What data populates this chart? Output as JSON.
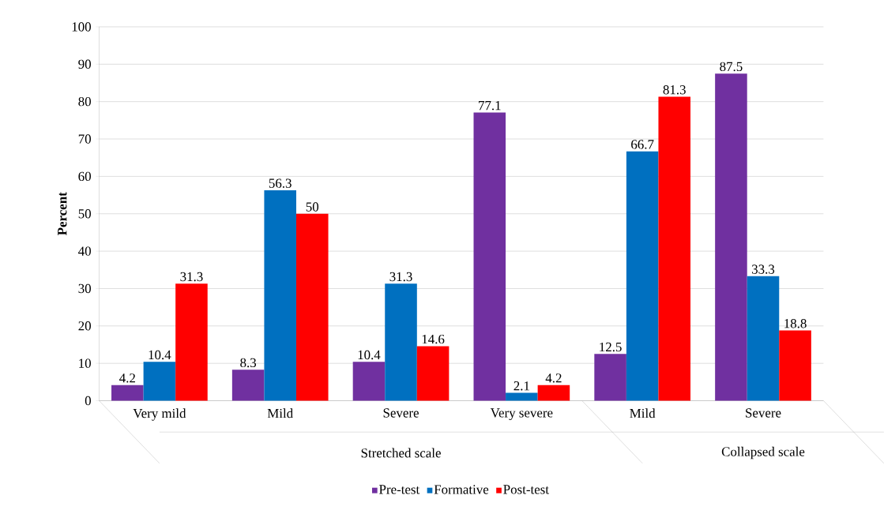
{
  "chart_data": {
    "type": "bar",
    "ylabel": "Percent",
    "categories": [
      "Very mild",
      "Mild",
      "Severe",
      "Very severe",
      "Mild",
      "Severe"
    ],
    "series": [
      {
        "name": "Pre-test",
        "color": "#7030a0",
        "values": [
          4.2,
          8.3,
          10.4,
          77.1,
          12.5,
          87.5
        ]
      },
      {
        "name": "Formative",
        "color": "#0070c0",
        "values": [
          10.4,
          56.3,
          31.3,
          2.1,
          66.7,
          33.3
        ]
      },
      {
        "name": "Post-test",
        "color": "#ff0000",
        "values": [
          31.3,
          50,
          14.6,
          4.2,
          81.3,
          18.8
        ]
      }
    ],
    "annotations": [
      "Stretched scale",
      "Collapsed scale"
    ],
    "ylim": [
      0,
      100
    ],
    "yticks": [
      0,
      10,
      20,
      30,
      40,
      50,
      60,
      70,
      80,
      90,
      100
    ],
    "grid": "y",
    "legend": "bottom",
    "data_labels": true
  }
}
